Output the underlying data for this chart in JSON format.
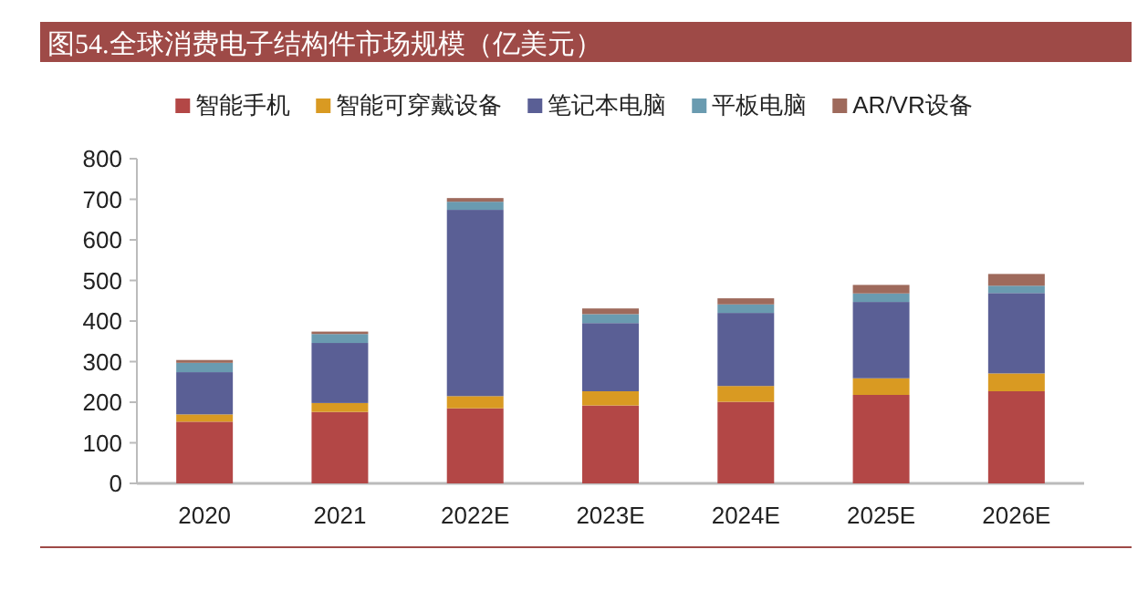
{
  "chart_data": {
    "type": "bar",
    "title": "图54.全球消费电子结构件市场规模（亿美元）",
    "categories": [
      "2020",
      "2021",
      "2022E",
      "2023E",
      "2024E",
      "2025E",
      "2026E"
    ],
    "stacked": true,
    "legend": "top",
    "ylim": [
      0,
      800
    ],
    "yticks": [
      0,
      100,
      200,
      300,
      400,
      500,
      600,
      700,
      800
    ],
    "series": [
      {
        "name": "智能手机",
        "color": "#b34746",
        "values": [
          152,
          176,
          185,
          192,
          201,
          218,
          227
        ]
      },
      {
        "name": "智能可穿戴设备",
        "color": "#d99a22",
        "values": [
          18,
          22,
          30,
          35,
          39,
          41,
          44
        ]
      },
      {
        "name": "笔记本电脑",
        "color": "#5a5f95",
        "values": [
          104,
          148,
          459,
          168,
          180,
          188,
          198
        ]
      },
      {
        "name": "平板电脑",
        "color": "#6a9bb0",
        "values": [
          23,
          22,
          20,
          22,
          21,
          21,
          18
        ]
      },
      {
        "name": "AR/VR设备",
        "color": "#9e6a5c",
        "values": [
          7,
          6,
          9,
          14,
          15,
          21,
          29
        ]
      }
    ]
  }
}
